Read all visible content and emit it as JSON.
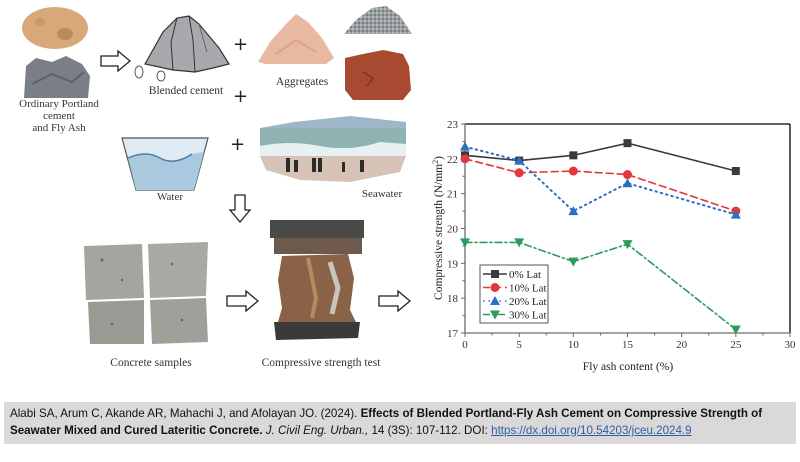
{
  "diagram": {
    "labels": {
      "opc_fly_ash": "Ordinary Portland cement",
      "opc_fly_ash_line2": "and Fly Ash",
      "blended_cement": "Blended cement",
      "aggregates": "Aggregates",
      "water": "Water",
      "seawater": "Seawater",
      "concrete_samples": "Concrete samples",
      "compressive_test": "Compressive strength test"
    },
    "operators": {
      "plus": "+"
    },
    "colors": {
      "cement_tan": "#d9a878",
      "fly_ash_gray": "#7a7f86",
      "sand_pink": "#e8b9a0",
      "laterite_red": "#a84a32",
      "gravel_gray": "#9aa0a2",
      "water_blue": "#a9c9df",
      "sea_teal": "#8fb2b3",
      "concrete_gray": "#a5a5a0",
      "rust": "#7a4a2c"
    }
  },
  "chart_data": {
    "type": "line",
    "title": "",
    "xlabel": "Fly ash content (%)",
    "ylabel": "Compressive strength (N/mm²)",
    "ylabel_text": "Compressive strength (N/mm",
    "ylabel_sup": "2",
    "ylabel_close": ")",
    "xlim": [
      0,
      30
    ],
    "ylim": [
      17,
      23
    ],
    "x_ticks": [
      "0",
      "5",
      "10",
      "15",
      "20",
      "25",
      "30"
    ],
    "y_ticks": [
      "17",
      "18",
      "19",
      "20",
      "21",
      "22",
      "23"
    ],
    "grid": false,
    "legend_position": "lower left",
    "x": [
      0,
      5,
      10,
      15,
      25
    ],
    "series": [
      {
        "name": "0% Lat",
        "values": [
          22.1,
          21.95,
          22.1,
          22.45,
          21.65
        ],
        "color": "#3a3a3a",
        "marker": "square",
        "line": "solid"
      },
      {
        "name": "10% Lat",
        "values": [
          22.0,
          21.6,
          21.65,
          21.55,
          20.5
        ],
        "color": "#e2383d",
        "marker": "circle",
        "line": "dashed"
      },
      {
        "name": "20% Lat",
        "values": [
          22.35,
          21.95,
          20.5,
          21.3,
          20.4
        ],
        "color": "#2a6fc4",
        "marker": "triangle-up",
        "line": "dotted"
      },
      {
        "name": "30% Lat",
        "values": [
          19.6,
          19.6,
          19.05,
          19.55,
          17.1
        ],
        "color": "#2e9a5c",
        "marker": "triangle-down",
        "line": "dash-dot"
      }
    ]
  },
  "citation": {
    "authors": "Alabi SA, Arum C, Akande AR, Mahachi J, and Afolayan JO. (2024). ",
    "title": "Effects of Blended Portland-Fly Ash Cement on Compressive Strength of Seawater Mixed and Cured Lateritic Concrete.",
    "journal": "J. Civil Eng. Urban.,",
    "volume_pages": " 14 (3S): 107-112. DOI: ",
    "doi_link": "https://dx.doi.org/10.54203/jceu.2024.9",
    "background_color": "#d9d9d9"
  }
}
